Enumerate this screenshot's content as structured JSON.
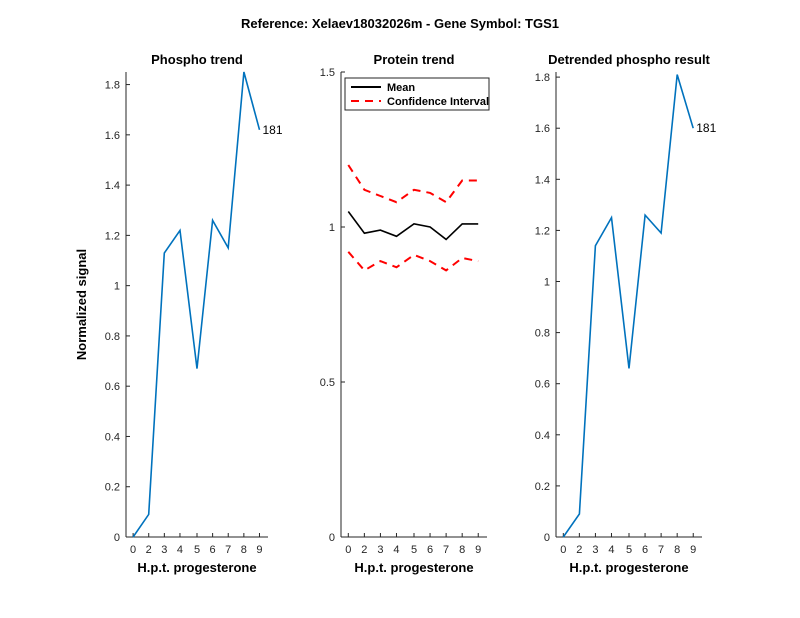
{
  "figure": {
    "suptitle": "Reference:  Xelaev18032026m - Gene Symbol:  TGS1"
  },
  "chart_data": [
    {
      "type": "line",
      "title": "Phospho trend",
      "xlabel": "H.p.t. progesterone",
      "ylabel": "Normalized signal",
      "x_tick_labels": [
        "0",
        "2",
        "3",
        "4",
        "5",
        "6",
        "7",
        "8",
        "9"
      ],
      "y_ticks": [
        0,
        0.2,
        0.4,
        0.6,
        0.8,
        1,
        1.2,
        1.4,
        1.6,
        1.8
      ],
      "y_tick_labels": [
        "0",
        "0.2",
        "0.4",
        "0.6",
        "0.8",
        "1",
        "1.2",
        "1.4",
        "1.6",
        "1.8"
      ],
      "ylim": [
        0,
        1.85
      ],
      "series": [
        {
          "color": "#0072BD",
          "style": "solid",
          "values": [
            0.0,
            0.09,
            1.13,
            1.22,
            0.67,
            1.26,
            1.15,
            1.85,
            1.62
          ]
        }
      ],
      "annotations": [
        {
          "text": "181",
          "point_index": 8
        }
      ],
      "grid": false
    },
    {
      "type": "line",
      "title": "Protein trend",
      "xlabel": "H.p.t. progesterone",
      "ylabel": "",
      "x_tick_labels": [
        "0",
        "2",
        "3",
        "4",
        "5",
        "6",
        "7",
        "8",
        "9"
      ],
      "y_ticks": [
        0,
        0.5,
        1,
        1.5
      ],
      "y_tick_labels": [
        "0",
        "0.5",
        "1",
        "1.5"
      ],
      "ylim": [
        0,
        1.5
      ],
      "series": [
        {
          "name": "Mean",
          "color": "#000000",
          "style": "solid",
          "values": [
            1.05,
            0.98,
            0.99,
            0.97,
            1.01,
            1.0,
            0.96,
            1.01,
            1.01
          ]
        },
        {
          "name": "Confidence Interval",
          "color": "#FF0000",
          "style": "dashed",
          "values": [
            1.2,
            1.12,
            1.1,
            1.08,
            1.12,
            1.11,
            1.08,
            1.15,
            1.15
          ]
        },
        {
          "color": "#FF0000",
          "style": "dashed",
          "values": [
            0.92,
            0.86,
            0.89,
            0.87,
            0.91,
            0.89,
            0.86,
            0.9,
            0.89
          ]
        }
      ],
      "legend": {
        "position": "top",
        "entries": [
          "Mean",
          "Confidence Interval"
        ]
      },
      "grid": false
    },
    {
      "type": "line",
      "title": "Detrended phospho result",
      "xlabel": "H.p.t. progesterone",
      "ylabel": "",
      "x_tick_labels": [
        "0",
        "2",
        "3",
        "4",
        "5",
        "6",
        "7",
        "8",
        "9"
      ],
      "y_ticks": [
        0,
        0.2,
        0.4,
        0.6,
        0.8,
        1,
        1.2,
        1.4,
        1.6,
        1.8
      ],
      "y_tick_labels": [
        "0",
        "0.2",
        "0.4",
        "0.6",
        "0.8",
        "1",
        "1.2",
        "1.4",
        "1.6",
        "1.8"
      ],
      "ylim": [
        0,
        1.82
      ],
      "series": [
        {
          "color": "#0072BD",
          "style": "solid",
          "values": [
            0.0,
            0.09,
            1.14,
            1.25,
            0.66,
            1.26,
            1.19,
            1.81,
            1.6
          ]
        }
      ],
      "annotations": [
        {
          "text": "181",
          "point_index": 8
        }
      ],
      "grid": false
    }
  ]
}
